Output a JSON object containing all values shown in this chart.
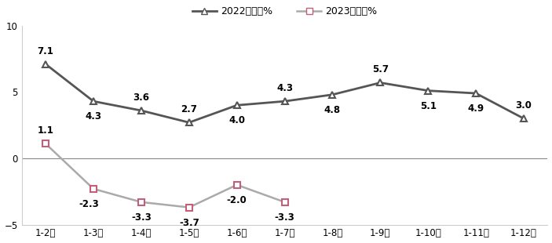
{
  "categories": [
    "1-2月",
    "1-3月",
    "1-4月",
    "1-5月",
    "1-6月",
    "1-7月",
    "1-8月",
    "1-9月",
    "1-10月",
    "1-11月",
    "1-12月"
  ],
  "series_2022": [
    7.1,
    4.3,
    3.6,
    2.7,
    4.0,
    4.3,
    4.8,
    5.7,
    5.1,
    4.9,
    3.0
  ],
  "series_2023": [
    1.1,
    -2.3,
    -3.3,
    -3.7,
    -2.0,
    -3.3,
    null,
    null,
    null,
    null,
    null
  ],
  "labels_2022": [
    "7.1",
    "4.3",
    "3.6",
    "2.7",
    "4.0",
    "4.3",
    "4.8",
    "5.7",
    "5.1",
    "4.9",
    "3.0"
  ],
  "labels_2023": [
    "1.1",
    "-2.3",
    "-3.3",
    "-3.7",
    "-2.0",
    "-3.3",
    "",
    "",
    "",
    "",
    ""
  ],
  "color_2022": "#555555",
  "color_2022_line": "#555555",
  "color_2023_line": "#aaaaaa",
  "color_2023_marker": "#c0607a",
  "legend_2022": "2022年增速%",
  "legend_2023": "2023年增速%",
  "ylim": [
    -5,
    10
  ],
  "yticks": [
    -5,
    0,
    5,
    10
  ],
  "label_offsets_2022_y": [
    12,
    -14,
    12,
    12,
    -14,
    12,
    -14,
    12,
    -14,
    -14,
    12
  ],
  "label_offsets_2023_y": [
    12,
    -14,
    -14,
    -14,
    -14,
    -14
  ],
  "label_offsets_2023_x": [
    0,
    -4,
    0,
    0,
    0,
    0
  ],
  "background_color": "#ffffff"
}
